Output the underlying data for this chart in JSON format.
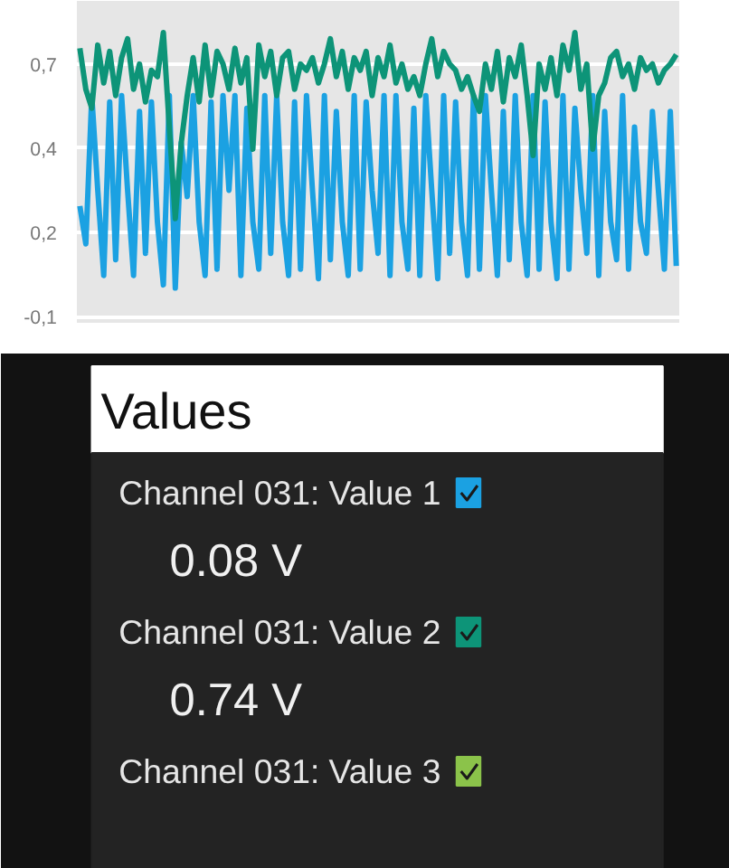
{
  "chart_data": {
    "type": "line",
    "annotations": [
      "Values",
      "0.08 V",
      "0.74 V"
    ],
    "categories": [
      null,
      null,
      null,
      null,
      null,
      null,
      null,
      null,
      null,
      null,
      null,
      null,
      null,
      null,
      null,
      null,
      null,
      null,
      null,
      null,
      null,
      null,
      null,
      null,
      null,
      null,
      null,
      null,
      null,
      null,
      null,
      null,
      null,
      null,
      null,
      null,
      null,
      null,
      null,
      null,
      null,
      null,
      null,
      null,
      null,
      null,
      null,
      null,
      null,
      null,
      null,
      null,
      null,
      null,
      null,
      null,
      null,
      null,
      null,
      null,
      null,
      null,
      null,
      null,
      null,
      null,
      null,
      null,
      null,
      null,
      null,
      null,
      null,
      null,
      null,
      null,
      null,
      null,
      null,
      null,
      null,
      null,
      null,
      null,
      null,
      null,
      null,
      null,
      null,
      null,
      null,
      null,
      null,
      null,
      null,
      null,
      null,
      null,
      null,
      null,
      null
    ],
    "ylim": [
      -0.12,
      0.9
    ],
    "yticks": [
      {
        "value": -0.1,
        "label": "-0,1"
      },
      {
        "value": 0.1667,
        "label": "0,2"
      },
      {
        "value": 0.4333,
        "label": "0,4"
      },
      {
        "value": 0.7,
        "label": "0,7"
      }
    ],
    "tick_labels": "y",
    "grid": "y",
    "legend": "bottom",
    "line_style": "solid",
    "series": [
      {
        "name": "Channel 031: Value 1",
        "color": "#1ba1e2",
        "values": [
          0.25,
          0.13,
          0.6,
          0.3,
          0.03,
          0.58,
          0.08,
          0.6,
          0.3,
          0.03,
          0.55,
          0.1,
          0.58,
          0.2,
          0.0,
          0.6,
          -0.01,
          0.45,
          0.28,
          0.6,
          0.2,
          0.03,
          0.58,
          0.05,
          0.6,
          0.3,
          0.6,
          0.03,
          0.56,
          0.2,
          0.05,
          0.6,
          0.1,
          0.6,
          0.2,
          0.03,
          0.58,
          0.05,
          0.6,
          0.3,
          0.02,
          0.6,
          0.08,
          0.55,
          0.2,
          0.03,
          0.6,
          0.05,
          0.58,
          0.3,
          0.1,
          0.6,
          0.03,
          0.6,
          0.2,
          0.05,
          0.56,
          0.03,
          0.6,
          0.3,
          0.02,
          0.6,
          0.1,
          0.58,
          0.2,
          0.03,
          0.6,
          0.05,
          0.6,
          0.3,
          0.03,
          0.55,
          0.08,
          0.6,
          0.2,
          0.03,
          0.6,
          0.05,
          0.58,
          0.2,
          0.02,
          0.6,
          0.05,
          0.56,
          0.3,
          0.1,
          0.6,
          0.03,
          0.55,
          0.2,
          0.08,
          0.6,
          0.05,
          0.5,
          0.2,
          0.1,
          0.55,
          0.3,
          0.05,
          0.55,
          0.06
        ]
      },
      {
        "name": "Channel 031: Value 2",
        "color": "#0d9478",
        "values": [
          0.75,
          0.62,
          0.56,
          0.76,
          0.64,
          0.74,
          0.6,
          0.72,
          0.78,
          0.62,
          0.7,
          0.58,
          0.68,
          0.66,
          0.8,
          0.5,
          0.21,
          0.45,
          0.6,
          0.72,
          0.58,
          0.76,
          0.6,
          0.74,
          0.7,
          0.62,
          0.75,
          0.64,
          0.72,
          0.43,
          0.76,
          0.66,
          0.74,
          0.6,
          0.72,
          0.74,
          0.62,
          0.7,
          0.68,
          0.72,
          0.64,
          0.7,
          0.78,
          0.66,
          0.74,
          0.62,
          0.72,
          0.68,
          0.74,
          0.6,
          0.72,
          0.66,
          0.76,
          0.64,
          0.7,
          0.62,
          0.66,
          0.6,
          0.7,
          0.78,
          0.66,
          0.74,
          0.7,
          0.68,
          0.62,
          0.66,
          0.6,
          0.55,
          0.7,
          0.62,
          0.74,
          0.58,
          0.72,
          0.66,
          0.76,
          0.6,
          0.41,
          0.7,
          0.62,
          0.72,
          0.6,
          0.76,
          0.68,
          0.8,
          0.62,
          0.7,
          0.43,
          0.6,
          0.64,
          0.72,
          0.74,
          0.66,
          0.7,
          0.62,
          0.72,
          0.68,
          0.7,
          0.64,
          0.68,
          0.7,
          0.73
        ]
      },
      {
        "name": "Channel 031: Value 3",
        "color": "#8bc34a",
        "values": [
          null,
          null,
          null,
          null,
          null,
          null,
          null,
          null,
          null,
          null,
          null,
          null,
          null,
          null,
          null,
          null,
          null,
          null,
          null,
          null,
          null,
          null,
          null,
          null,
          null,
          null,
          null,
          null,
          null,
          null,
          null,
          null,
          null,
          null,
          null,
          null,
          null,
          null,
          null,
          null,
          null,
          null,
          null,
          null,
          null,
          null,
          null,
          null,
          null,
          null,
          null,
          null,
          null,
          null,
          null,
          null,
          null,
          null,
          null,
          null,
          null,
          null,
          null,
          null,
          null,
          null,
          null,
          null,
          null,
          null,
          null,
          null,
          null,
          null,
          null,
          null,
          null,
          null,
          null,
          null,
          null,
          null,
          null,
          null,
          null,
          null,
          null,
          null,
          null,
          null,
          null,
          null,
          null,
          null,
          null,
          null,
          null,
          null,
          null,
          null,
          null
        ]
      }
    ]
  }
}
